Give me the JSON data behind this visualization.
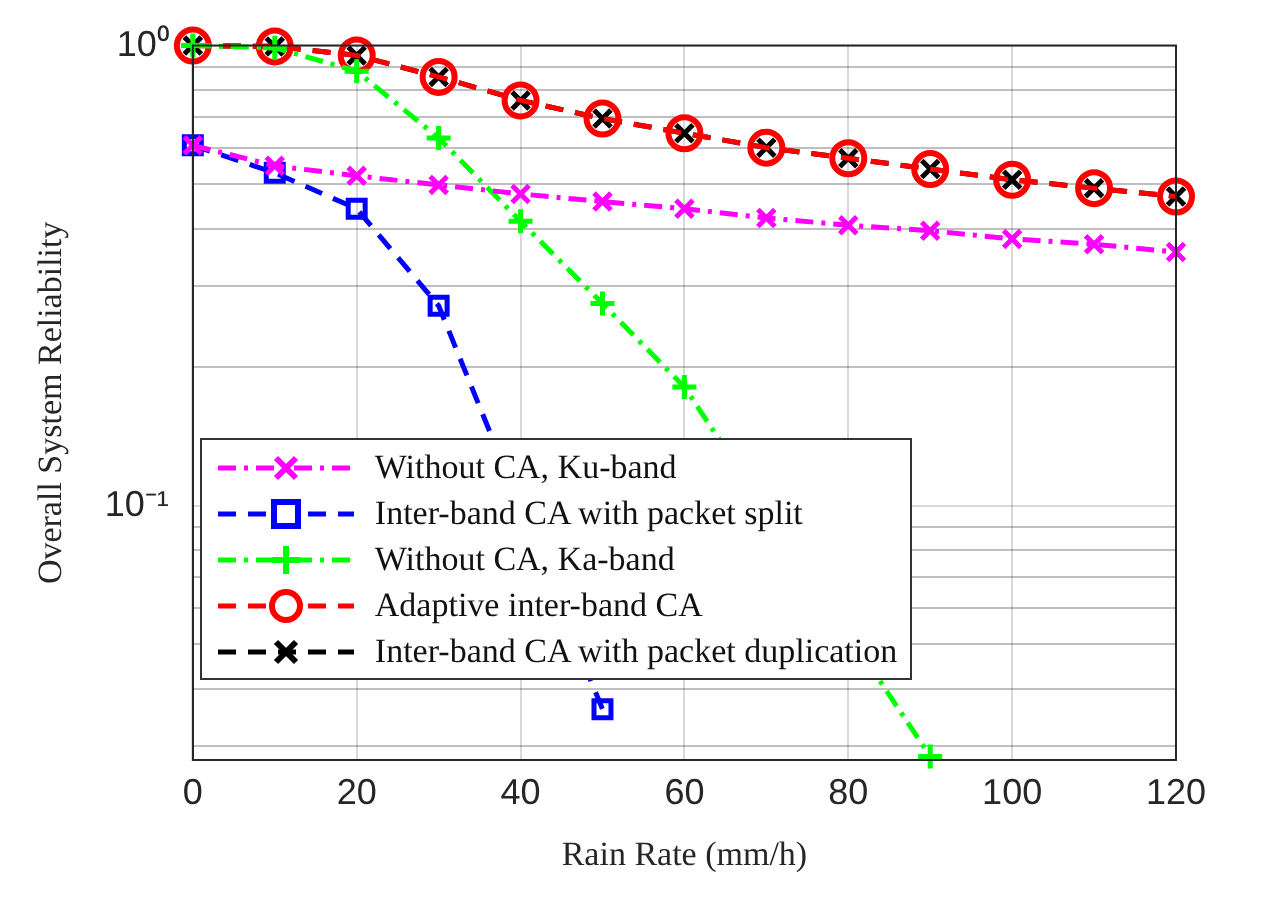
{
  "chart_data": {
    "type": "line",
    "xlabel": "Rain Rate (mm/h)",
    "ylabel": "Overall System Reliability",
    "x": [
      0,
      10,
      20,
      30,
      40,
      50,
      60,
      70,
      80,
      90,
      100,
      110,
      120
    ],
    "series": [
      {
        "name": "Without CA, Ku-band",
        "color": "#ff00ff",
        "marker": "cross",
        "line_style": "dashdot",
        "values": [
          0.607,
          0.548,
          0.521,
          0.498,
          0.476,
          0.458,
          0.442,
          0.422,
          0.407,
          0.396,
          0.38,
          0.37,
          0.356
        ]
      },
      {
        "name": "Inter-band CA with packet split",
        "color": "#0000ff",
        "marker": "square",
        "line_style": "dashed",
        "values": [
          0.607,
          0.529,
          0.442,
          0.272,
          null,
          0.0361,
          null,
          null,
          null,
          null,
          null,
          null,
          null
        ]
      },
      {
        "name": "Without CA, Ka-band",
        "color": "#00ff00",
        "marker": "plus",
        "line_style": "dashdot",
        "values": [
          1.0,
          0.989,
          0.88,
          0.63,
          0.415,
          0.275,
          0.181,
          null,
          null,
          0.0285,
          null,
          null,
          null
        ]
      },
      {
        "name": "Adaptive inter-band CA",
        "color": "#ff0000",
        "marker": "circle",
        "line_style": "dashed",
        "values": [
          1.0,
          0.996,
          0.952,
          0.855,
          0.76,
          0.694,
          0.645,
          0.6,
          0.569,
          0.539,
          0.511,
          0.49,
          0.47
        ]
      },
      {
        "name": "Inter-band CA with packet duplication",
        "color": "#000000",
        "marker": "cross",
        "line_style": "dashed",
        "values": [
          1.0,
          0.996,
          0.952,
          0.855,
          0.76,
          0.694,
          0.645,
          0.6,
          0.569,
          0.539,
          0.511,
          0.49,
          0.47
        ]
      }
    ],
    "log": "y",
    "xlim": [
      0,
      120
    ],
    "xticks": [
      0,
      20,
      40,
      60,
      80,
      100,
      120
    ],
    "ylim": [
      0.028,
      1
    ],
    "yticks": [
      {
        "value": 0.03,
        "label": null
      },
      {
        "value": 0.04,
        "label": null
      },
      {
        "value": 0.05,
        "label": null
      },
      {
        "value": 0.06,
        "label": null
      },
      {
        "value": 0.07,
        "label": null
      },
      {
        "value": 0.08,
        "label": null
      },
      {
        "value": 0.09,
        "label": null
      },
      {
        "value": 0.1,
        "label": "10⁻¹"
      },
      {
        "value": 0.2,
        "label": null
      },
      {
        "value": 0.3,
        "label": null
      },
      {
        "value": 0.4,
        "label": null
      },
      {
        "value": 0.5,
        "label": null
      },
      {
        "value": 0.6,
        "label": null
      },
      {
        "value": 0.7,
        "label": null
      },
      {
        "value": 0.8,
        "label": null
      },
      {
        "value": 0.9,
        "label": null
      },
      {
        "value": 1,
        "label": "10⁰"
      }
    ],
    "grid": true,
    "legend": "bottom left"
  }
}
